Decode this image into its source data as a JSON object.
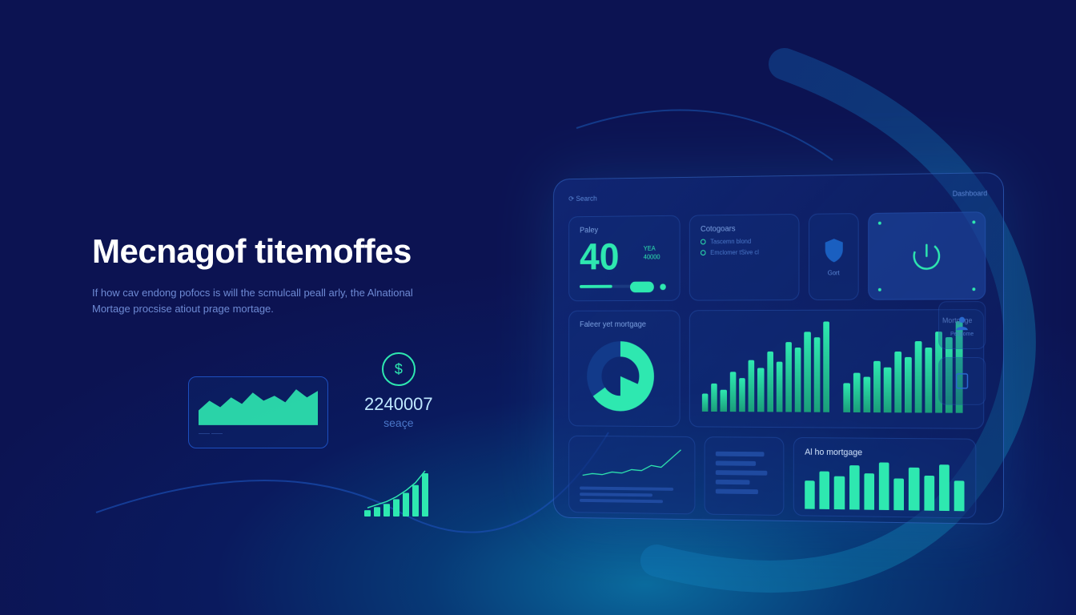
{
  "colors": {
    "bg_deep": "#0c1352",
    "bg_glow": "#0a6b9e",
    "accent": "#2ee8b0",
    "accent_dark": "#1a9e7a",
    "text_muted": "#6e8ad4",
    "text_dim": "#4a76c8",
    "tile_border": "#3264c8",
    "white": "#ffffff"
  },
  "hero": {
    "title": "Mecnagof titemoffes",
    "subtitle": "If how cav endong pofocs is will the scmulcall peall arly, the Alnational Mortage procsise atiout prage mortage."
  },
  "mini_area": {
    "type": "area",
    "values": [
      18,
      30,
      22,
      34,
      26,
      40,
      30,
      36,
      28,
      44,
      34,
      42
    ],
    "fill": "#2ee8b0",
    "footer": "——  ——"
  },
  "money": {
    "icon": "$",
    "value": "2240007",
    "label": "seaçe"
  },
  "growth_bars": {
    "type": "bar",
    "values": [
      8,
      12,
      16,
      22,
      30,
      40,
      55
    ],
    "color": "#2ee8b0",
    "trend_line": true
  },
  "panel": {
    "topbar_left": "⟳  Search",
    "topbar_right": "Dashboard",
    "row1": {
      "big": {
        "title": "Paley",
        "value": "40",
        "side_top": "YEA",
        "side_bottom": "40000",
        "progress": 0.55
      },
      "categories": {
        "title": "Cotogoars",
        "items": [
          "Tascemn blond",
          "Emclomer tSive cl"
        ]
      },
      "shield": {
        "label": "Gort"
      },
      "power": {
        "icon": "power"
      }
    },
    "row2": {
      "donut": {
        "title": "Faleer yet mortgage",
        "type": "donut",
        "slices": [
          {
            "value": 65,
            "color": "#2ee8b0"
          },
          {
            "value": 35,
            "color": "#123a8a"
          }
        ]
      },
      "bars": {
        "type": "bar",
        "label": "Mortgage",
        "groups": [
          [
            18,
            28,
            22,
            40,
            34,
            52,
            44,
            60,
            50,
            70,
            64,
            80,
            74,
            90
          ],
          [
            30,
            40,
            36,
            52,
            46,
            62,
            56,
            72,
            66,
            82,
            76,
            92
          ]
        ],
        "color": "#2ee8b0"
      }
    },
    "row3": {
      "line": {
        "type": "line",
        "values": [
          10,
          14,
          12,
          18,
          16,
          24,
          22,
          34,
          30,
          50,
          70
        ],
        "color": "#2ee8b0",
        "rows": 3
      },
      "text": {
        "lines": 5
      },
      "al": {
        "title": "Al ho mortgage",
        "type": "bar",
        "values": [
          45,
          60,
          52,
          70,
          58,
          75,
          50,
          68,
          55,
          72,
          48
        ],
        "color": "#2ee8b0"
      }
    },
    "sidebar": [
      {
        "icon": "people",
        "label": "Pecgome"
      },
      {
        "icon": "doc",
        "label": ""
      }
    ]
  }
}
